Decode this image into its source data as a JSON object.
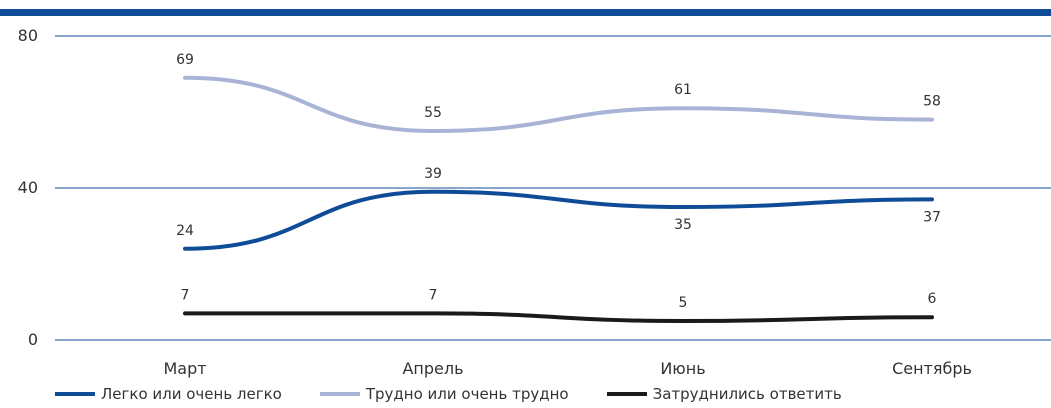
{
  "chart_data": {
    "type": "line",
    "categories": [
      "Март",
      "Апрель",
      "Июнь",
      "Сентябрь"
    ],
    "ylim": [
      0,
      80
    ],
    "yticks": [
      0,
      40,
      80
    ],
    "grid": true,
    "legend_position": "bottom",
    "series": [
      {
        "name": "Легко или очень легко",
        "values": [
          24,
          39,
          35,
          37
        ],
        "color": "#0f4c97"
      },
      {
        "name": "Трудно или очень трудно",
        "values": [
          69,
          55,
          61,
          58
        ],
        "color": "#a9b3d6"
      },
      {
        "name": "Затруднились ответить",
        "values": [
          7,
          7,
          5,
          6
        ],
        "color": "#1a1a1a"
      }
    ],
    "colors": {
      "accent_bar": "#0f4c97",
      "gridline": "#0f4c97"
    }
  }
}
